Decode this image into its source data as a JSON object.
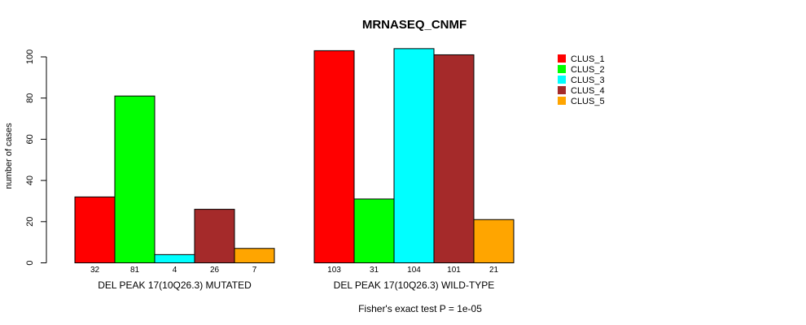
{
  "chart_data": {
    "type": "bar",
    "title": "MRNASEQ_CNMF",
    "ylabel": "number of cases",
    "xlabel": "",
    "ylim": [
      0,
      100
    ],
    "yticks": [
      0,
      20,
      40,
      60,
      80,
      100
    ],
    "groups": [
      "DEL PEAK 17(10Q26.3) MUTATED",
      "DEL PEAK 17(10Q26.3) WILD-TYPE"
    ],
    "series": [
      {
        "name": "CLUS_1",
        "color": "#ff0000",
        "values": [
          32,
          103
        ]
      },
      {
        "name": "CLUS_2",
        "color": "#00ff00",
        "values": [
          81,
          31
        ]
      },
      {
        "name": "CLUS_3",
        "color": "#00ffff",
        "values": [
          4,
          104
        ]
      },
      {
        "name": "CLUS_4",
        "color": "#a52a2a",
        "values": [
          26,
          101
        ]
      },
      {
        "name": "CLUS_5",
        "color": "#ffa500",
        "values": [
          7,
          21
        ]
      }
    ],
    "footnote": "Fisher's exact test P = 1e-05",
    "legend_position": "top-right"
  }
}
